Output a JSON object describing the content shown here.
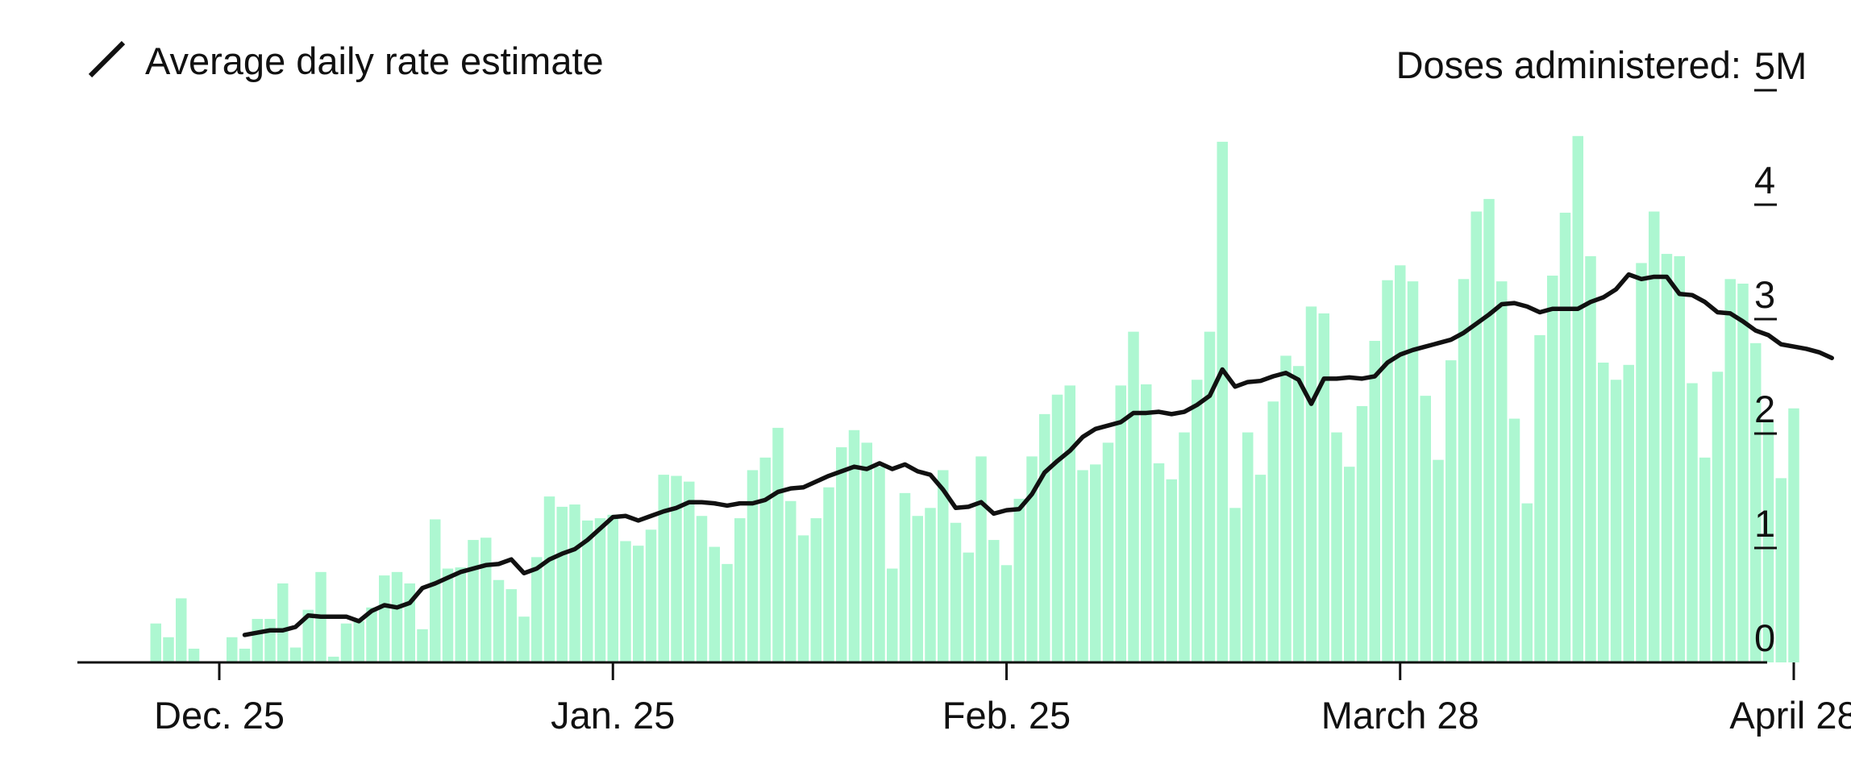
{
  "chart_data": {
    "type": "bar",
    "title": "",
    "ylabel": "Doses administered:",
    "legend": {
      "label": "Average daily rate estimate",
      "placement": "top-left"
    },
    "x_start": "Dec. 20",
    "x_end": "April 28",
    "x_ticks": [
      {
        "date": "Dec. 25",
        "label": "Dec. 25"
      },
      {
        "date": "Jan. 25",
        "label": "Jan. 25"
      },
      {
        "date": "Feb. 25",
        "label": "Feb. 25"
      },
      {
        "date": "March 28",
        "label": "March 28"
      },
      {
        "date": "April 28",
        "label": "April 28"
      }
    ],
    "y_ticks": [
      {
        "value": 0,
        "label": "0"
      },
      {
        "value": 1,
        "label": "1"
      },
      {
        "value": 2,
        "label": "2"
      },
      {
        "value": 3,
        "label": "3"
      },
      {
        "value": 4,
        "label": "4"
      },
      {
        "value": 5,
        "label": "5M"
      }
    ],
    "ylim": [
      0,
      5
    ],
    "grid": false,
    "colors": {
      "bars": "#adf7d1",
      "line": "#111111",
      "axis": "#111111"
    },
    "series": [
      {
        "type": "bar",
        "unit": "millions of doses",
        "values": [
          0.34,
          0.22,
          0.56,
          0.12,
          0,
          0,
          0.22,
          0.12,
          0.38,
          0.38,
          0.69,
          0.13,
          0.46,
          0.79,
          0.05,
          0.34,
          0.36,
          0.48,
          0.76,
          0.79,
          0.69,
          0.29,
          1.25,
          0.82,
          0.83,
          1.07,
          1.09,
          0.72,
          0.64,
          0.4,
          0.92,
          1.45,
          1.36,
          1.38,
          1.24,
          1.26,
          1.29,
          1.06,
          1.02,
          1.16,
          1.64,
          1.63,
          1.58,
          1.28,
          1.01,
          0.86,
          1.26,
          1.68,
          1.79,
          2.05,
          1.41,
          1.11,
          1.26,
          1.53,
          1.88,
          2.03,
          1.92,
          1.71,
          0.82,
          1.48,
          1.28,
          1.35,
          1.68,
          1.22,
          0.96,
          1.8,
          1.07,
          0.85,
          1.43,
          1.8,
          2.17,
          2.34,
          2.42,
          1.68,
          1.73,
          1.92,
          2.42,
          2.89,
          2.43,
          1.74,
          1.6,
          2.01,
          2.47,
          2.89,
          4.55,
          1.35,
          2.01,
          1.64,
          2.28,
          2.68,
          2.59,
          3.11,
          3.05,
          2.01,
          1.71,
          2.24,
          2.81,
          3.34,
          3.47,
          3.33,
          2.33,
          1.77,
          2.64,
          3.35,
          3.94,
          4.05,
          3.33,
          2.13,
          1.39,
          2.86,
          3.38,
          3.93,
          4.6,
          3.55,
          2.62,
          2.47,
          2.6,
          3.49,
          3.94,
          3.57,
          3.55,
          2.44,
          1.79,
          2.54,
          3.35,
          3.31,
          2.79,
          2.1,
          1.61,
          2.22
        ]
      },
      {
        "type": "line",
        "name": "Average daily rate estimate",
        "unit": "millions of doses per day",
        "start_offset": 7,
        "values": [
          0.24,
          0.26,
          0.28,
          0.28,
          0.31,
          0.41,
          0.4,
          0.4,
          0.4,
          0.36,
          0.45,
          0.5,
          0.48,
          0.52,
          0.65,
          0.69,
          0.74,
          0.79,
          0.82,
          0.85,
          0.86,
          0.9,
          0.78,
          0.82,
          0.9,
          0.95,
          0.99,
          1.07,
          1.17,
          1.27,
          1.28,
          1.24,
          1.28,
          1.32,
          1.35,
          1.4,
          1.4,
          1.39,
          1.37,
          1.39,
          1.39,
          1.42,
          1.49,
          1.52,
          1.53,
          1.58,
          1.63,
          1.67,
          1.71,
          1.69,
          1.74,
          1.69,
          1.73,
          1.67,
          1.64,
          1.51,
          1.35,
          1.36,
          1.4,
          1.3,
          1.33,
          1.34,
          1.47,
          1.66,
          1.76,
          1.85,
          1.97,
          2.04,
          2.07,
          2.1,
          2.18,
          2.18,
          2.19,
          2.17,
          2.19,
          2.25,
          2.33,
          2.56,
          2.41,
          2.45,
          2.46,
          2.5,
          2.53,
          2.47,
          2.26,
          2.48,
          2.48,
          2.49,
          2.48,
          2.5,
          2.62,
          2.69,
          2.73,
          2.76,
          2.79,
          2.82,
          2.88,
          2.96,
          3.04,
          3.13,
          3.14,
          3.11,
          3.06,
          3.09,
          3.09,
          3.09,
          3.15,
          3.19,
          3.26,
          3.39,
          3.35,
          3.37,
          3.37,
          3.22,
          3.21,
          3.15,
          3.06,
          3.05,
          2.98,
          2.9,
          2.86,
          2.78,
          2.76,
          2.74,
          2.71,
          2.66
        ]
      }
    ]
  }
}
